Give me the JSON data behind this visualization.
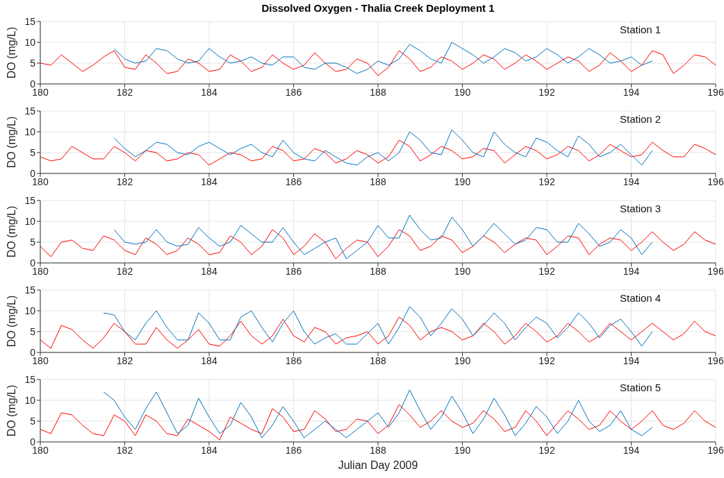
{
  "chart_data": [
    {
      "type": "line",
      "title": "Dissolved Oxygen - Thalia Creek Deployment 1",
      "ylabel": "DO (mg/L)",
      "annotations": [
        "Station 1"
      ],
      "xlim": [
        180,
        196
      ],
      "xticks": [
        180,
        182,
        184,
        186,
        188,
        190,
        192,
        194,
        196
      ],
      "ylim": [
        0,
        15
      ],
      "yticks": [
        0,
        5,
        10,
        15
      ],
      "grid": true,
      "x": [
        180,
        180.25,
        180.5,
        180.75,
        181,
        181.25,
        181.5,
        181.75,
        182,
        182.25,
        182.5,
        182.75,
        183,
        183.25,
        183.5,
        183.75,
        184,
        184.25,
        184.5,
        184.75,
        185,
        185.25,
        185.5,
        185.75,
        186,
        186.25,
        186.5,
        186.75,
        187,
        187.25,
        187.5,
        187.75,
        188,
        188.25,
        188.5,
        188.75,
        189,
        189.25,
        189.5,
        189.75,
        190,
        190.25,
        190.5,
        190.75,
        191,
        191.25,
        191.5,
        191.75,
        192,
        192.25,
        192.5,
        192.75,
        193,
        193.25,
        193.5,
        193.75,
        194,
        194.25,
        194.5,
        194.75,
        195,
        195.25,
        195.5,
        195.75,
        196
      ],
      "series": [
        {
          "color": "#ff0000",
          "values": [
            5,
            4.5,
            7,
            5,
            3,
            4.5,
            6.5,
            8,
            4,
            3.5,
            7,
            5,
            2.5,
            3,
            6,
            5,
            3,
            3.5,
            7,
            5.5,
            3,
            4,
            7,
            5,
            3.5,
            4.5,
            7.5,
            5,
            3,
            3.5,
            6,
            5,
            2,
            4,
            8,
            6,
            3,
            4,
            6.5,
            5.5,
            3.5,
            5,
            7,
            6,
            3.5,
            5,
            7,
            5.5,
            3.5,
            5,
            6.5,
            5.5,
            3,
            4.5,
            7.5,
            5.5,
            3,
            4.5,
            8,
            7,
            2.5,
            4.5,
            7,
            6.5,
            4.5
          ]
        },
        {
          "color": "#0072bd",
          "x": [
            181.75,
            182,
            182.25,
            182.5,
            182.75,
            183,
            183.25,
            183.5,
            183.75,
            184,
            184.25,
            184.5,
            184.75,
            185,
            185.25,
            185.5,
            185.75,
            186,
            186.25,
            186.5,
            186.75,
            187,
            187.25,
            187.5,
            187.75,
            188,
            188.25,
            188.5,
            188.75,
            189,
            189.25,
            189.5,
            189.75,
            190,
            190.25,
            190.5,
            190.75,
            191,
            191.25,
            191.5,
            191.75,
            192,
            192.25,
            192.5,
            192.75,
            193,
            193.25,
            193.5,
            193.75,
            194,
            194.25,
            194.5
          ],
          "values": [
            8.5,
            6,
            5,
            5.5,
            8.5,
            8,
            6,
            5,
            5.5,
            8.5,
            6.5,
            5,
            5.5,
            6.5,
            5,
            4.5,
            6.5,
            6.5,
            4,
            3.5,
            5,
            5,
            4,
            2.5,
            3.5,
            5.5,
            4.5,
            6,
            9.5,
            8,
            6,
            5,
            10,
            8.5,
            7,
            5,
            6.5,
            8.5,
            7.5,
            5.5,
            6.5,
            8.5,
            7,
            5,
            6.5,
            8.5,
            7,
            5,
            5.5,
            6.5,
            4.5,
            5.5
          ]
        }
      ]
    },
    {
      "type": "line",
      "ylabel": "DO (mg/L)",
      "annotations": [
        "Station 2"
      ],
      "xlim": [
        180,
        196
      ],
      "xticks": [
        180,
        182,
        184,
        186,
        188,
        190,
        192,
        194,
        196
      ],
      "ylim": [
        0,
        15
      ],
      "yticks": [
        0,
        5,
        10,
        15
      ],
      "grid": true,
      "x": [
        180,
        180.25,
        180.5,
        180.75,
        181,
        181.25,
        181.5,
        181.75,
        182,
        182.25,
        182.5,
        182.75,
        183,
        183.25,
        183.5,
        183.75,
        184,
        184.25,
        184.5,
        184.75,
        185,
        185.25,
        185.5,
        185.75,
        186,
        186.25,
        186.5,
        186.75,
        187,
        187.25,
        187.5,
        187.75,
        188,
        188.25,
        188.5,
        188.75,
        189,
        189.25,
        189.5,
        189.75,
        190,
        190.25,
        190.5,
        190.75,
        191,
        191.25,
        191.5,
        191.75,
        192,
        192.25,
        192.5,
        192.75,
        193,
        193.25,
        193.5,
        193.75,
        194,
        194.25,
        194.5,
        194.75,
        195,
        195.25,
        195.5,
        195.75,
        196
      ],
      "series": [
        {
          "color": "#ff0000",
          "values": [
            4,
            3,
            3.5,
            6.5,
            5,
            3.5,
            3.5,
            6.5,
            5,
            3,
            5.5,
            5,
            3,
            3.5,
            5,
            4.5,
            2,
            3.5,
            5,
            4.5,
            3,
            3.5,
            6.5,
            5.5,
            3,
            3.5,
            6,
            5,
            2.5,
            3.5,
            5.5,
            4.5,
            2.5,
            4,
            8,
            6.5,
            3,
            4.5,
            6.5,
            5.5,
            3.5,
            4,
            6,
            5.5,
            2.5,
            4.5,
            6.5,
            5.5,
            3.5,
            4.5,
            6.5,
            5.5,
            3,
            4.5,
            7,
            5.5,
            4,
            4.5,
            7.5,
            5.5,
            4,
            4,
            7,
            6,
            4.5
          ]
        },
        {
          "color": "#0072bd",
          "x": [
            181.75,
            182,
            182.25,
            182.5,
            182.75,
            183,
            183.25,
            183.5,
            183.75,
            184,
            184.25,
            184.5,
            184.75,
            185,
            185.25,
            185.5,
            185.75,
            186,
            186.25,
            186.5,
            186.75,
            187,
            187.25,
            187.5,
            187.75,
            188,
            188.25,
            188.5,
            188.75,
            189,
            189.25,
            189.5,
            189.75,
            190,
            190.25,
            190.5,
            190.75,
            191,
            191.25,
            191.5,
            191.75,
            192,
            192.25,
            192.5,
            192.75,
            193,
            193.25,
            193.5,
            193.75,
            194,
            194.25,
            194.5
          ],
          "values": [
            8.5,
            6,
            4,
            5.5,
            7.5,
            7,
            5,
            4.5,
            6.5,
            7.5,
            6,
            4.5,
            6,
            7,
            5,
            4,
            8,
            5,
            3.5,
            3,
            5.5,
            4,
            2.5,
            2,
            4,
            5,
            3,
            5,
            10,
            8,
            5,
            4.5,
            10.5,
            8,
            5,
            4,
            10,
            7,
            5,
            4,
            8.5,
            7.5,
            5.5,
            4,
            9,
            7,
            4,
            5,
            7,
            4.5,
            2,
            5.5
          ]
        }
      ]
    },
    {
      "type": "line",
      "ylabel": "DO (mg/L)",
      "annotations": [
        "Station 3"
      ],
      "xlim": [
        180,
        196
      ],
      "xticks": [
        180,
        182,
        184,
        186,
        188,
        190,
        192,
        194,
        196
      ],
      "ylim": [
        0,
        15
      ],
      "yticks": [
        0,
        5,
        10,
        15
      ],
      "grid": true,
      "x": [
        180,
        180.25,
        180.5,
        180.75,
        181,
        181.25,
        181.5,
        181.75,
        182,
        182.25,
        182.5,
        182.75,
        183,
        183.25,
        183.5,
        183.75,
        184,
        184.25,
        184.5,
        184.75,
        185,
        185.25,
        185.5,
        185.75,
        186,
        186.25,
        186.5,
        186.75,
        187,
        187.25,
        187.5,
        187.75,
        188,
        188.25,
        188.5,
        188.75,
        189,
        189.25,
        189.5,
        189.75,
        190,
        190.25,
        190.5,
        190.75,
        191,
        191.25,
        191.5,
        191.75,
        192,
        192.25,
        192.5,
        192.75,
        193,
        193.25,
        193.5,
        193.75,
        194,
        194.25,
        194.5,
        194.75,
        195,
        195.25,
        195.5,
        195.75,
        196
      ],
      "series": [
        {
          "color": "#ff0000",
          "values": [
            4,
            1.5,
            5,
            5.5,
            3.5,
            3,
            6.5,
            5.5,
            3,
            2,
            6,
            4.5,
            2,
            3,
            6,
            4.5,
            2,
            2.5,
            6.5,
            5,
            2,
            4,
            8,
            6,
            2,
            4,
            7,
            5,
            1,
            3.5,
            5.5,
            5,
            1.5,
            4,
            8,
            6.5,
            3,
            4,
            6.5,
            5.5,
            2.5,
            4,
            6.5,
            5,
            2.5,
            4.5,
            6,
            5.5,
            2,
            4,
            6.5,
            6,
            2,
            4.5,
            6,
            5.5,
            3,
            5,
            7.5,
            5,
            3,
            4.5,
            7.5,
            5.5,
            4.5
          ]
        },
        {
          "color": "#0072bd",
          "x": [
            181.75,
            182,
            182.25,
            182.5,
            182.75,
            183,
            183.25,
            183.5,
            183.75,
            184,
            184.25,
            184.5,
            184.75,
            185,
            185.25,
            185.5,
            185.75,
            186,
            186.25,
            186.5,
            186.75,
            187,
            187.25,
            187.5,
            187.75,
            188,
            188.25,
            188.5,
            188.75,
            189,
            189.25,
            189.5,
            189.75,
            190,
            190.25,
            190.5,
            190.75,
            191,
            191.25,
            191.5,
            191.75,
            192,
            192.25,
            192.5,
            192.75,
            193,
            193.25,
            193.5,
            193.75,
            194,
            194.25,
            194.5
          ],
          "values": [
            8,
            5,
            4.5,
            5,
            8,
            5,
            4,
            4.5,
            8.5,
            6,
            4,
            5,
            9,
            7,
            5,
            5,
            8.5,
            5,
            2,
            3.5,
            5,
            6,
            1,
            3,
            5,
            9,
            6,
            6,
            11.5,
            8,
            5.5,
            6,
            11,
            8,
            4,
            6.5,
            9.5,
            7,
            4.5,
            5.5,
            8.5,
            8,
            5,
            5,
            9.5,
            7,
            4,
            5,
            8,
            6,
            2,
            5
          ]
        }
      ]
    },
    {
      "type": "line",
      "ylabel": "DO (mg/L)",
      "annotations": [
        "Station 4"
      ],
      "xlim": [
        180,
        196
      ],
      "xticks": [
        180,
        182,
        184,
        186,
        188,
        190,
        192,
        194,
        196
      ],
      "ylim": [
        0,
        15
      ],
      "yticks": [
        0,
        5,
        10,
        15
      ],
      "grid": true,
      "x": [
        180,
        180.25,
        180.5,
        180.75,
        181,
        181.25,
        181.5,
        181.75,
        182,
        182.25,
        182.5,
        182.75,
        183,
        183.25,
        183.5,
        183.75,
        184,
        184.25,
        184.5,
        184.75,
        185,
        185.25,
        185.5,
        185.75,
        186,
        186.25,
        186.5,
        186.75,
        187,
        187.25,
        187.5,
        187.75,
        188,
        188.25,
        188.5,
        188.75,
        189,
        189.25,
        189.5,
        189.75,
        190,
        190.25,
        190.5,
        190.75,
        191,
        191.25,
        191.5,
        191.75,
        192,
        192.25,
        192.5,
        192.75,
        193,
        193.25,
        193.5,
        193.75,
        194,
        194.25,
        194.5,
        194.75,
        195,
        195.25,
        195.5,
        195.75,
        196
      ],
      "series": [
        {
          "color": "#ff0000",
          "values": [
            3,
            1,
            6.5,
            5.5,
            3,
            1,
            3.5,
            7,
            5,
            2,
            2,
            6,
            3,
            1,
            3,
            5.5,
            2,
            1.5,
            4,
            7.5,
            4,
            2,
            4,
            8,
            4,
            2.5,
            6,
            5,
            2,
            3.5,
            4,
            5,
            2,
            4,
            8.5,
            6.5,
            3,
            5,
            6,
            5,
            3,
            4,
            7,
            5,
            2,
            4,
            7,
            5,
            2.5,
            4,
            7,
            5,
            2.5,
            4,
            7,
            5,
            3,
            5,
            7,
            5,
            3,
            4.5,
            7.5,
            5,
            4
          ]
        },
        {
          "color": "#0072bd",
          "x": [
            181.5,
            181.75,
            182,
            182.25,
            182.5,
            182.75,
            183,
            183.25,
            183.5,
            183.75,
            184,
            184.25,
            184.5,
            184.75,
            185,
            185.25,
            185.5,
            185.75,
            186,
            186.25,
            186.5,
            186.75,
            187,
            187.25,
            187.5,
            187.75,
            188,
            188.25,
            188.5,
            188.75,
            189,
            189.25,
            189.5,
            189.75,
            190,
            190.25,
            190.5,
            190.75,
            191,
            191.25,
            191.5,
            191.75,
            192,
            192.25,
            192.5,
            192.75,
            193,
            193.25,
            193.5,
            193.75,
            194,
            194.25,
            194.5
          ],
          "values": [
            9.5,
            9,
            5,
            3,
            7,
            10,
            6,
            3,
            3,
            9.5,
            7,
            3,
            3,
            8.5,
            10,
            6,
            2.5,
            7,
            10,
            5,
            2,
            3.5,
            4.5,
            2,
            2,
            4.5,
            7,
            2,
            6,
            11,
            8.5,
            4,
            7,
            10.5,
            8,
            4,
            6.5,
            9.5,
            7,
            3,
            6,
            8.5,
            7,
            3.5,
            6,
            9.5,
            7,
            3.5,
            6.5,
            8,
            5,
            1.5,
            5
          ]
        }
      ]
    },
    {
      "type": "line",
      "ylabel": "DO (mg/L)",
      "xlabel": "Julian Day 2009",
      "annotations": [
        "Station 5"
      ],
      "xlim": [
        180,
        196
      ],
      "xticks": [
        180,
        182,
        184,
        186,
        188,
        190,
        192,
        194,
        196
      ],
      "ylim": [
        0,
        15
      ],
      "yticks": [
        0,
        5,
        10,
        15
      ],
      "grid": true,
      "x": [
        180,
        180.25,
        180.5,
        180.75,
        181,
        181.25,
        181.5,
        181.75,
        182,
        182.25,
        182.5,
        182.75,
        183,
        183.25,
        183.5,
        183.75,
        184,
        184.25,
        184.5,
        184.75,
        185,
        185.25,
        185.5,
        185.75,
        186,
        186.25,
        186.5,
        186.75,
        187,
        187.25,
        187.5,
        187.75,
        188,
        188.25,
        188.5,
        188.75,
        189,
        189.25,
        189.5,
        189.75,
        190,
        190.25,
        190.5,
        190.75,
        191,
        191.25,
        191.5,
        191.75,
        192,
        192.25,
        192.5,
        192.75,
        193,
        193.25,
        193.5,
        193.75,
        194,
        194.25,
        194.5,
        194.75,
        195,
        195.25,
        195.5,
        195.75,
        196
      ],
      "series": [
        {
          "color": "#ff0000",
          "values": [
            3,
            2,
            7,
            6.5,
            4,
            2,
            1.5,
            6.5,
            5,
            1.5,
            6.5,
            5,
            2,
            1.5,
            5.5,
            4,
            2.5,
            0.5,
            6,
            4.5,
            3,
            2,
            8,
            6,
            2.5,
            3,
            7.5,
            5.5,
            2.5,
            3,
            5.5,
            5,
            2,
            4,
            9,
            6.5,
            3.5,
            5,
            7.5,
            5,
            3.5,
            4.5,
            7.5,
            5.5,
            2.5,
            3.5,
            7.5,
            5,
            1.5,
            4.5,
            7.5,
            5.5,
            3,
            4,
            7.5,
            5,
            3,
            5,
            7.5,
            4,
            3,
            4.5,
            7.5,
            5,
            3.5
          ]
        },
        {
          "color": "#0072bd",
          "x": [
            181.5,
            181.75,
            182,
            182.25,
            182.5,
            182.75,
            183,
            183.25,
            183.5,
            183.75,
            184,
            184.25,
            184.5,
            184.75,
            185,
            185.25,
            185.5,
            185.75,
            186,
            186.25,
            186.5,
            186.75,
            187,
            187.25,
            187.5,
            187.75,
            188,
            188.25,
            188.5,
            188.75,
            189,
            189.25,
            189.5,
            189.75,
            190,
            190.25,
            190.5,
            190.75,
            191,
            191.25,
            191.5,
            191.75,
            192,
            192.25,
            192.5,
            192.75,
            193,
            193.25,
            193.5,
            193.75,
            194,
            194.25,
            194.5
          ],
          "values": [
            12,
            10,
            6,
            3,
            8,
            12,
            7,
            2,
            4,
            10.5,
            6,
            2,
            4,
            9.5,
            6,
            1,
            4,
            8.5,
            5,
            1,
            3,
            5,
            3,
            1,
            3,
            5,
            7,
            3.5,
            7,
            12.5,
            7.5,
            3,
            6,
            11,
            7,
            2,
            5.5,
            10.5,
            6.5,
            1.5,
            4.5,
            8.5,
            6,
            2,
            5,
            10,
            5,
            2.5,
            4,
            7.5,
            3,
            1.5,
            3.5
          ]
        }
      ]
    }
  ]
}
